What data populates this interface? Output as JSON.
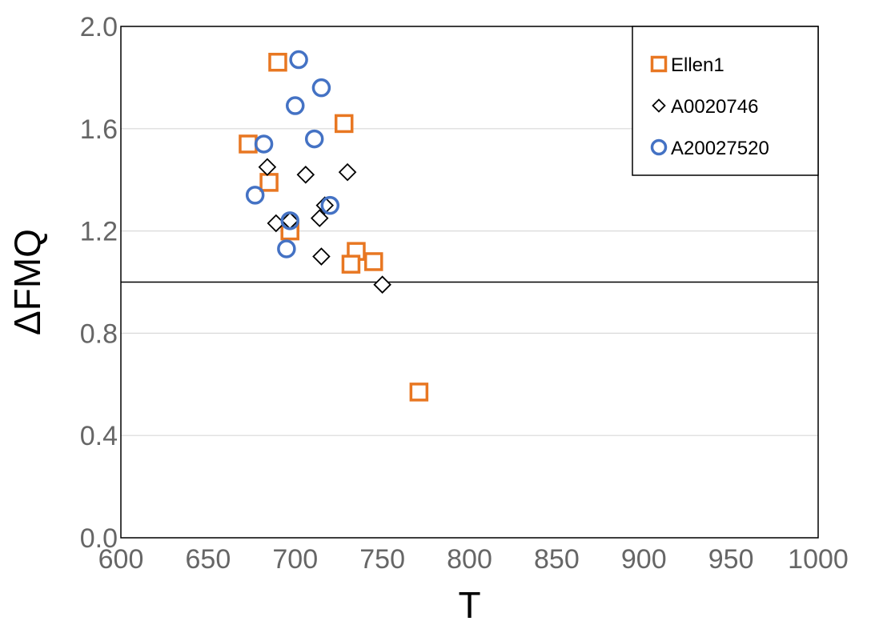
{
  "chart_data": {
    "type": "scatter",
    "xlabel": "T",
    "ylabel": "ΔFMQ",
    "xlim": [
      600,
      1000
    ],
    "ylim": [
      0.0,
      2.0
    ],
    "x_ticks": [
      "600",
      "650",
      "700",
      "750",
      "800",
      "850",
      "900",
      "950",
      "1000"
    ],
    "y_ticks": [
      "0.0",
      "0.4",
      "0.8",
      "1.2",
      "1.6",
      "2.0"
    ],
    "grid": "horizontal",
    "reference_line_y": 1.0,
    "legend_position": "top-right",
    "series": [
      {
        "name": "Ellen1",
        "marker": "square",
        "color": "#E87722",
        "points": [
          [
            690,
            1.86
          ],
          [
            728,
            1.62
          ],
          [
            673,
            1.54
          ],
          [
            685,
            1.39
          ],
          [
            697,
            1.2
          ],
          [
            735,
            1.12
          ],
          [
            732,
            1.07
          ],
          [
            745,
            1.08
          ],
          [
            771,
            0.57
          ]
        ]
      },
      {
        "name": "A0020746",
        "marker": "diamond",
        "color": "#000000",
        "points": [
          [
            684,
            1.45
          ],
          [
            706,
            1.42
          ],
          [
            730,
            1.43
          ],
          [
            689,
            1.23
          ],
          [
            697,
            1.24
          ],
          [
            714,
            1.25
          ],
          [
            717,
            1.3
          ],
          [
            715,
            1.1
          ],
          [
            750,
            0.99
          ]
        ]
      },
      {
        "name": "A20027520",
        "marker": "circle",
        "color": "#4472C4",
        "points": [
          [
            702,
            1.87
          ],
          [
            715,
            1.76
          ],
          [
            700,
            1.69
          ],
          [
            711,
            1.56
          ],
          [
            682,
            1.54
          ],
          [
            677,
            1.34
          ],
          [
            720,
            1.3
          ],
          [
            697,
            1.24
          ],
          [
            695,
            1.13
          ]
        ]
      }
    ]
  }
}
